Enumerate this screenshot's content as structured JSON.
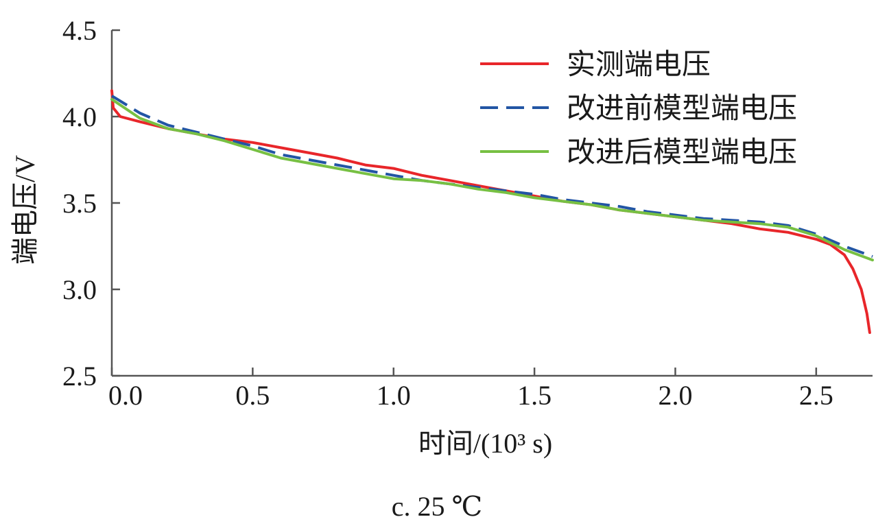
{
  "caption": "c. 25 ℃",
  "chart_data": {
    "type": "line",
    "xlabel": "时间/(10³ s)",
    "ylabel": "端电压/V",
    "xlim": [
      0,
      2.7
    ],
    "ylim": [
      2.5,
      4.5
    ],
    "x_ticks": [
      0.0,
      0.5,
      1.0,
      1.5,
      2.0,
      2.5
    ],
    "x_tick_labels": [
      "0.0",
      "0.5",
      "1.0",
      "1.5",
      "2.0",
      "2.5"
    ],
    "y_ticks": [
      2.5,
      3.0,
      3.5,
      4.0,
      4.5
    ],
    "y_tick_labels": [
      "2.5",
      "3.0",
      "3.5",
      "4.0",
      "4.5"
    ],
    "grid": false,
    "legend_position": "top-right",
    "series": [
      {
        "name": "实测端电压",
        "color": "#e8262a",
        "style": "solid",
        "x": [
          0,
          0.005,
          0.03,
          0.1,
          0.2,
          0.3,
          0.4,
          0.5,
          0.6,
          0.7,
          0.8,
          0.9,
          1.0,
          1.1,
          1.2,
          1.3,
          1.4,
          1.5,
          1.6,
          1.7,
          1.8,
          1.9,
          2.0,
          2.1,
          2.2,
          2.3,
          2.4,
          2.5,
          2.55,
          2.6,
          2.63,
          2.66,
          2.68,
          2.69
        ],
        "y": [
          4.15,
          4.05,
          4.0,
          3.97,
          3.93,
          3.9,
          3.87,
          3.85,
          3.82,
          3.79,
          3.76,
          3.72,
          3.7,
          3.66,
          3.63,
          3.6,
          3.57,
          3.54,
          3.51,
          3.49,
          3.46,
          3.44,
          3.42,
          3.4,
          3.38,
          3.35,
          3.33,
          3.29,
          3.26,
          3.2,
          3.12,
          3.0,
          2.86,
          2.75
        ]
      },
      {
        "name": "改进前模型端电压",
        "color": "#2255a4",
        "style": "dashed",
        "x": [
          0,
          0.1,
          0.2,
          0.3,
          0.4,
          0.5,
          0.6,
          0.7,
          0.8,
          0.9,
          1.0,
          1.1,
          1.2,
          1.3,
          1.4,
          1.5,
          1.6,
          1.7,
          1.8,
          1.9,
          2.0,
          2.1,
          2.2,
          2.3,
          2.4,
          2.5,
          2.6,
          2.7
        ],
        "y": [
          4.12,
          4.02,
          3.95,
          3.91,
          3.87,
          3.83,
          3.78,
          3.75,
          3.72,
          3.69,
          3.66,
          3.63,
          3.61,
          3.59,
          3.57,
          3.55,
          3.52,
          3.5,
          3.48,
          3.45,
          3.43,
          3.41,
          3.4,
          3.39,
          3.37,
          3.32,
          3.25,
          3.19
        ]
      },
      {
        "name": "改进后模型端电压",
        "color": "#77c043",
        "style": "solid",
        "x": [
          0,
          0.1,
          0.2,
          0.3,
          0.4,
          0.5,
          0.6,
          0.7,
          0.8,
          0.9,
          1.0,
          1.1,
          1.2,
          1.3,
          1.4,
          1.5,
          1.6,
          1.7,
          1.8,
          1.9,
          2.0,
          2.1,
          2.2,
          2.3,
          2.4,
          2.5,
          2.6,
          2.7
        ],
        "y": [
          4.1,
          3.99,
          3.93,
          3.9,
          3.86,
          3.81,
          3.76,
          3.73,
          3.7,
          3.67,
          3.64,
          3.63,
          3.61,
          3.58,
          3.56,
          3.53,
          3.51,
          3.49,
          3.46,
          3.44,
          3.42,
          3.4,
          3.39,
          3.38,
          3.36,
          3.31,
          3.23,
          3.17
        ]
      }
    ]
  }
}
